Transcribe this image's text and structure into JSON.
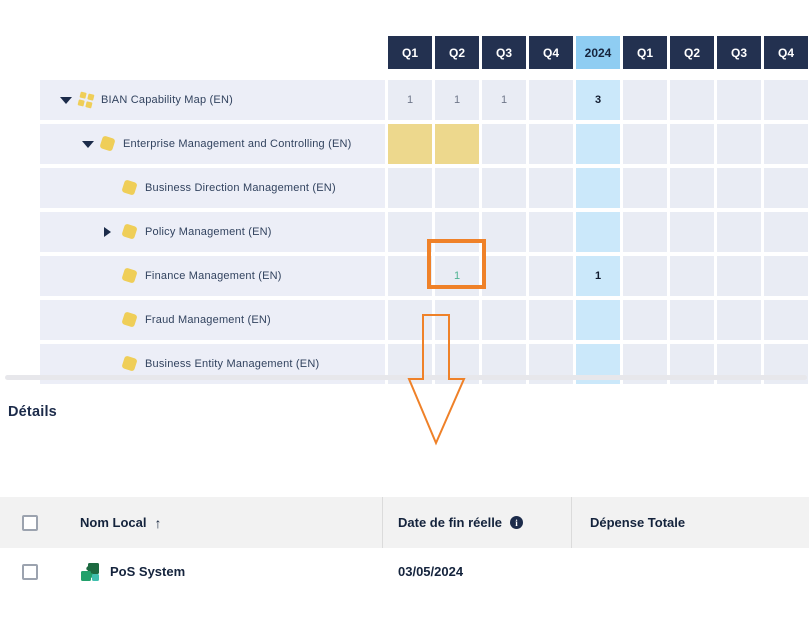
{
  "colors": {
    "header_dark": "#233150",
    "header_year_bg": "#8FCDF2",
    "cell_bg": "#E9ECF4",
    "cell_year_bg": "#CBE8FA",
    "cell_yellow": "#EDD88D",
    "row_bg": "#ECEEF7",
    "annotation_orange": "#EF8128",
    "value_green": "#4FB392"
  },
  "grid": {
    "columns": [
      "Q1",
      "Q2",
      "Q3",
      "Q4",
      "2024",
      "Q1",
      "Q2",
      "Q3",
      "Q4"
    ],
    "year_column_index": 4,
    "rows": [
      {
        "label": "BIAN Capability Map (EN)",
        "level": 0,
        "caret": "expanded",
        "icon": "capability-map-icon",
        "values": [
          "1",
          "1",
          "1",
          "",
          "3",
          "",
          "",
          "",
          ""
        ],
        "styles": [
          "",
          "",
          "",
          "",
          "bold",
          "",
          "",
          "",
          ""
        ]
      },
      {
        "label": "Enterprise Management and Controlling (EN)",
        "level": 1,
        "caret": "expanded",
        "icon": "capability-icon",
        "values": [
          "",
          "",
          "",
          "",
          "",
          "",
          "",
          "",
          ""
        ],
        "styles": [
          "yellow",
          "yellow",
          "",
          "",
          "",
          "",
          "",
          "",
          ""
        ]
      },
      {
        "label": "Business Direction Management (EN)",
        "level": 2,
        "caret": "none",
        "icon": "capability-icon",
        "values": [
          "",
          "",
          "",
          "",
          "",
          "",
          "",
          "",
          ""
        ],
        "styles": [
          "",
          "",
          "",
          "",
          "",
          "",
          "",
          "",
          ""
        ]
      },
      {
        "label": "Policy Management (EN)",
        "level": 2,
        "caret": "collapsed",
        "icon": "capability-icon",
        "values": [
          "",
          "",
          "",
          "",
          "",
          "",
          "",
          "",
          ""
        ],
        "styles": [
          "",
          "",
          "",
          "",
          "",
          "",
          "",
          "",
          ""
        ]
      },
      {
        "label": "Finance Management (EN)",
        "level": 2,
        "caret": "none",
        "icon": "capability-icon",
        "values": [
          "",
          "1",
          "",
          "",
          "1",
          "",
          "",
          "",
          ""
        ],
        "styles": [
          "",
          "green",
          "",
          "",
          "bold",
          "",
          "",
          "",
          ""
        ]
      },
      {
        "label": "Fraud Management (EN)",
        "level": 2,
        "caret": "none",
        "icon": "capability-icon",
        "values": [
          "",
          "",
          "",
          "",
          "",
          "",
          "",
          "",
          ""
        ],
        "styles": [
          "",
          "",
          "",
          "",
          "",
          "",
          "",
          "",
          ""
        ]
      },
      {
        "label": "Business Entity Management (EN)",
        "level": 2,
        "caret": "none",
        "icon": "capability-icon",
        "values": [
          "",
          "",
          "",
          "",
          "",
          "",
          "",
          "",
          ""
        ],
        "styles": [
          "",
          "",
          "",
          "",
          "",
          "",
          "",
          "",
          ""
        ]
      }
    ],
    "annotated_cell": {
      "row": "Finance Management (EN)",
      "column": "Q2",
      "value": "1"
    }
  },
  "details": {
    "heading": "Détails",
    "columns": [
      {
        "label": "Nom Local",
        "sort": "asc"
      },
      {
        "label": "Date de fin réelle",
        "info": true
      },
      {
        "label": "Dépense Totale"
      }
    ],
    "info_icon_glyph": "i",
    "sort_arrow_glyph": "↑",
    "rows": [
      {
        "name": "PoS System",
        "icon": "application-icon",
        "date": "03/05/2024",
        "expense": ""
      }
    ]
  }
}
